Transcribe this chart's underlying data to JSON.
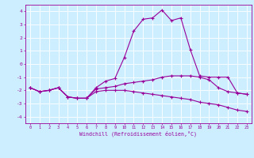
{
  "xlabel": "Windchill (Refroidissement éolien,°C)",
  "x": [
    0,
    1,
    2,
    3,
    4,
    5,
    6,
    7,
    8,
    9,
    10,
    11,
    12,
    13,
    14,
    15,
    16,
    17,
    18,
    19,
    20,
    21,
    22,
    23
  ],
  "line1": [
    -1.8,
    -2.1,
    -2.0,
    -1.8,
    -2.5,
    -2.6,
    -2.6,
    -1.8,
    -1.3,
    -1.1,
    0.5,
    2.5,
    3.4,
    3.5,
    4.1,
    3.3,
    3.5,
    1.1,
    -0.9,
    -1.0,
    -1.0,
    -1.0,
    -2.2,
    -2.3
  ],
  "line2": [
    -1.8,
    -2.1,
    -2.0,
    -1.8,
    -2.5,
    -2.6,
    -2.6,
    -1.9,
    -1.8,
    -1.7,
    -1.5,
    -1.4,
    -1.3,
    -1.2,
    -1.0,
    -0.9,
    -0.9,
    -0.9,
    -1.0,
    -1.2,
    -1.8,
    -2.1,
    -2.2,
    -2.3
  ],
  "line3": [
    -1.8,
    -2.1,
    -2.0,
    -1.8,
    -2.5,
    -2.6,
    -2.6,
    -2.1,
    -2.0,
    -2.0,
    -2.0,
    -2.1,
    -2.2,
    -2.3,
    -2.4,
    -2.5,
    -2.6,
    -2.7,
    -2.9,
    -3.0,
    -3.1,
    -3.3,
    -3.5,
    -3.6
  ],
  "bg_color": "#cceeff",
  "grid_color": "#ffffff",
  "line_color": "#990099",
  "ylim": [
    -4.5,
    4.5
  ],
  "yticks": [
    -4,
    -3,
    -2,
    -1,
    0,
    1,
    2,
    3,
    4
  ],
  "xticks": [
    0,
    1,
    2,
    3,
    4,
    5,
    6,
    7,
    8,
    9,
    10,
    11,
    12,
    13,
    14,
    15,
    16,
    17,
    18,
    19,
    20,
    21,
    22,
    23
  ]
}
